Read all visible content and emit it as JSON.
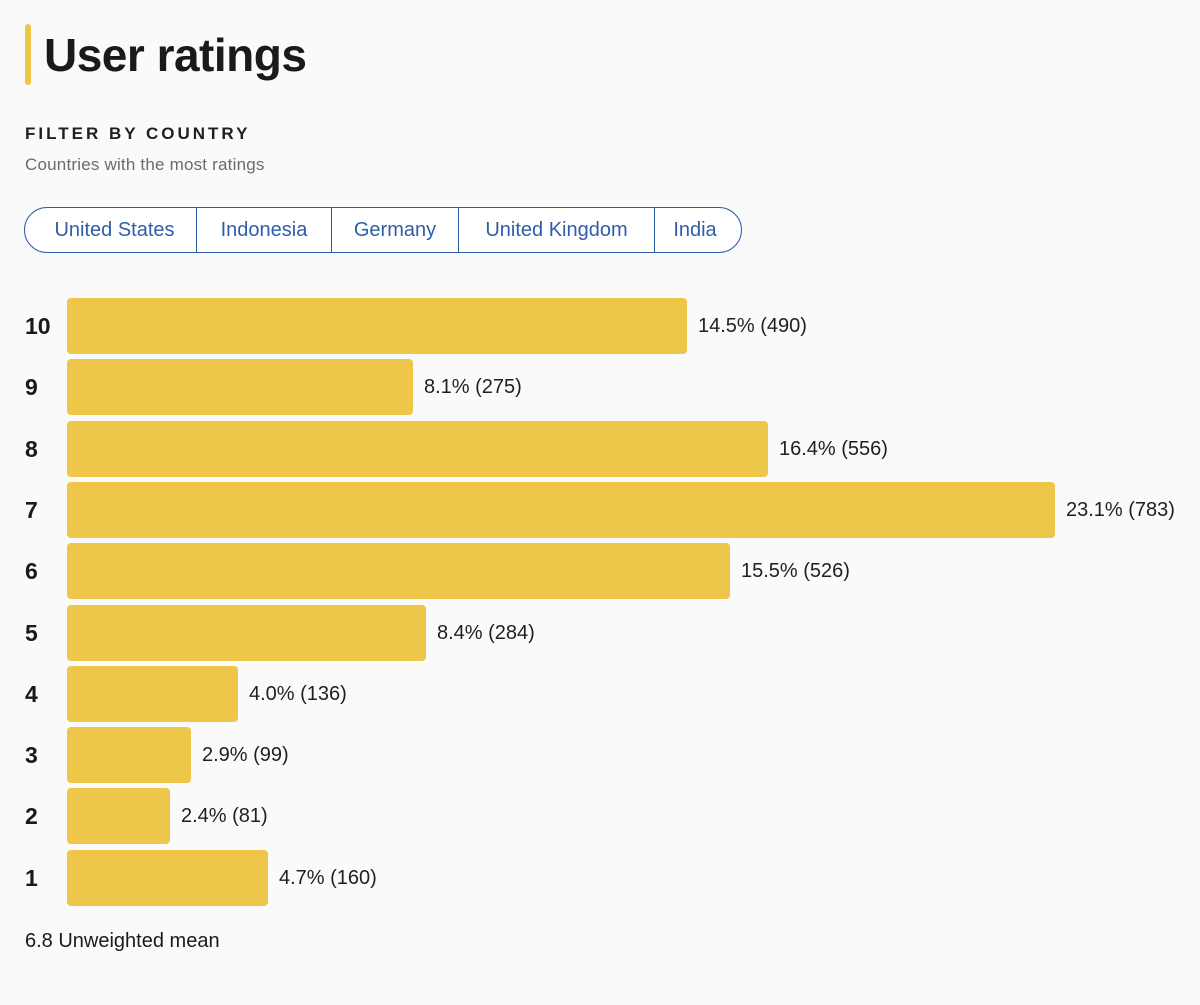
{
  "title": "User ratings",
  "filter": {
    "heading": "FILTER BY COUNTRY",
    "subtitle": "Countries with the most ratings",
    "countries": [
      "United States",
      "Indonesia",
      "Germany",
      "United Kingdom",
      "India"
    ]
  },
  "colors": {
    "accent": "#eec74a",
    "bar": "#eec74a",
    "link": "#2f5da8"
  },
  "chart_data": {
    "type": "bar",
    "orientation": "horizontal",
    "title": "User ratings",
    "categories": [
      "10",
      "9",
      "8",
      "7",
      "6",
      "5",
      "4",
      "3",
      "2",
      "1"
    ],
    "percent": [
      14.5,
      8.1,
      16.4,
      23.1,
      15.5,
      8.4,
      4.0,
      2.9,
      2.4,
      4.7
    ],
    "counts": [
      490,
      275,
      556,
      783,
      526,
      284,
      136,
      99,
      81,
      160
    ],
    "labels": [
      "14.5% (490)",
      "8.1% (275)",
      "16.4% (556)",
      "23.1% (783)",
      "15.5% (526)",
      "8.4% (284)",
      "4.0% (136)",
      "2.9% (99)",
      "2.4% (81)",
      "4.7% (160)"
    ],
    "xlim": [
      0,
      23.1
    ],
    "grid": false,
    "legend": "none"
  },
  "summary": {
    "mean_label": "6.8 Unweighted mean"
  }
}
